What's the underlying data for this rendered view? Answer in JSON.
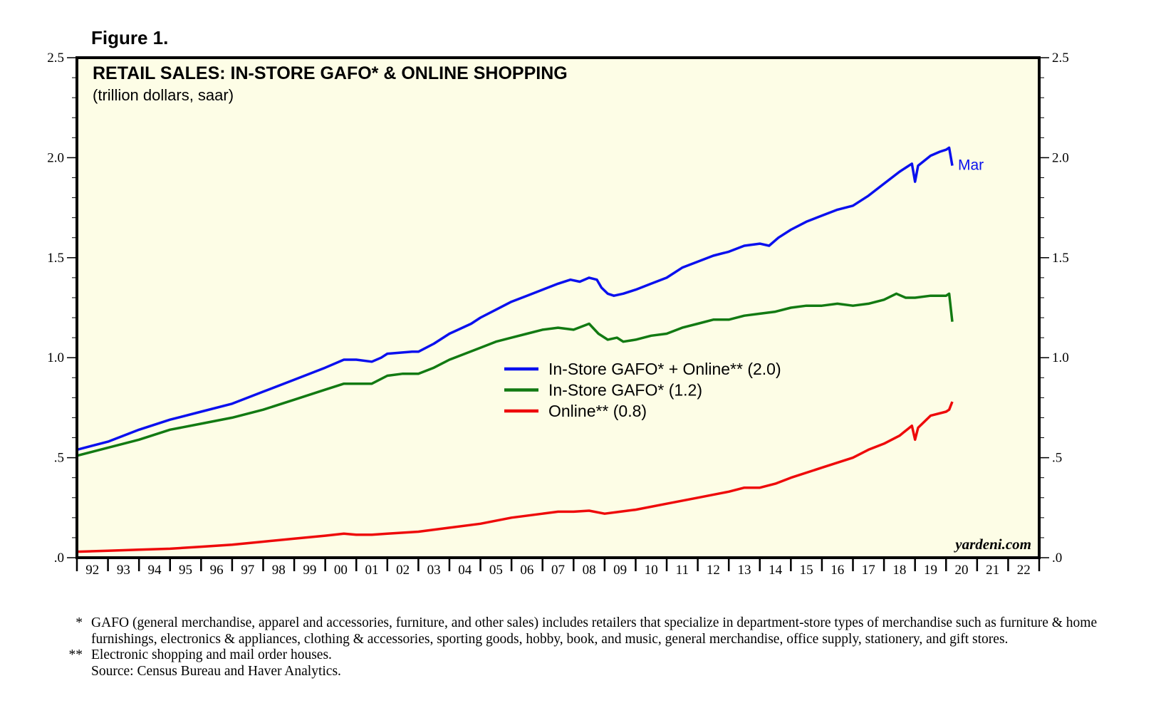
{
  "figure_label": "Figure 1.",
  "chart_data": {
    "type": "line",
    "title": "RETAIL SALES: IN-STORE GAFO* & ONLINE SHOPPING",
    "subtitle": "(trillion dollars, saar)",
    "ylim": [
      0,
      2.5
    ],
    "y_ticks": [
      ".0",
      ".5",
      "1.0",
      "1.5",
      "2.0",
      "2.5"
    ],
    "y_tick_values": [
      0,
      0.5,
      1.0,
      1.5,
      2.0,
      2.5
    ],
    "xlim": [
      1992,
      2023
    ],
    "x_tick_labels": [
      "92",
      "93",
      "94",
      "95",
      "96",
      "97",
      "98",
      "99",
      "00",
      "01",
      "02",
      "03",
      "04",
      "05",
      "06",
      "07",
      "08",
      "09",
      "10",
      "11",
      "12",
      "13",
      "14",
      "15",
      "16",
      "17",
      "18",
      "19",
      "20",
      "21",
      "22"
    ],
    "grid": false,
    "legend_position": "center",
    "background_color": "#fdfde6",
    "watermark": "yardeni.com",
    "end_label": "Mar",
    "series": [
      {
        "name": "In-Store GAFO* + Online** (2.0)",
        "color": "#0a10ee",
        "points": [
          [
            1992.0,
            0.54
          ],
          [
            1993.0,
            0.58
          ],
          [
            1994.0,
            0.64
          ],
          [
            1995.0,
            0.69
          ],
          [
            1996.0,
            0.73
          ],
          [
            1997.0,
            0.77
          ],
          [
            1998.0,
            0.83
          ],
          [
            1999.0,
            0.89
          ],
          [
            2000.0,
            0.95
          ],
          [
            2000.6,
            0.99
          ],
          [
            2001.0,
            0.99
          ],
          [
            2001.5,
            0.98
          ],
          [
            2001.8,
            1.0
          ],
          [
            2002.0,
            1.02
          ],
          [
            2002.8,
            1.03
          ],
          [
            2003.0,
            1.03
          ],
          [
            2003.5,
            1.07
          ],
          [
            2004.0,
            1.12
          ],
          [
            2004.7,
            1.17
          ],
          [
            2005.0,
            1.2
          ],
          [
            2005.5,
            1.24
          ],
          [
            2006.0,
            1.28
          ],
          [
            2006.5,
            1.31
          ],
          [
            2007.0,
            1.34
          ],
          [
            2007.5,
            1.37
          ],
          [
            2007.9,
            1.39
          ],
          [
            2008.2,
            1.38
          ],
          [
            2008.5,
            1.4
          ],
          [
            2008.75,
            1.39
          ],
          [
            2008.9,
            1.35
          ],
          [
            2009.1,
            1.32
          ],
          [
            2009.3,
            1.31
          ],
          [
            2009.6,
            1.32
          ],
          [
            2010.0,
            1.34
          ],
          [
            2010.5,
            1.37
          ],
          [
            2011.0,
            1.4
          ],
          [
            2011.5,
            1.45
          ],
          [
            2012.0,
            1.48
          ],
          [
            2012.5,
            1.51
          ],
          [
            2013.0,
            1.53
          ],
          [
            2013.5,
            1.56
          ],
          [
            2014.0,
            1.57
          ],
          [
            2014.3,
            1.56
          ],
          [
            2014.6,
            1.6
          ],
          [
            2015.0,
            1.64
          ],
          [
            2015.5,
            1.68
          ],
          [
            2016.0,
            1.71
          ],
          [
            2016.5,
            1.74
          ],
          [
            2017.0,
            1.76
          ],
          [
            2017.5,
            1.81
          ],
          [
            2018.0,
            1.87
          ],
          [
            2018.5,
            1.93
          ],
          [
            2018.9,
            1.97
          ],
          [
            2019.0,
            1.88
          ],
          [
            2019.1,
            1.96
          ],
          [
            2019.5,
            2.01
          ],
          [
            2019.8,
            2.03
          ],
          [
            2020.0,
            2.04
          ],
          [
            2020.1,
            2.05
          ],
          [
            2020.2,
            1.96
          ]
        ]
      },
      {
        "name": "In-Store GAFO* (1.2)",
        "color": "#127a12",
        "points": [
          [
            1992.0,
            0.51
          ],
          [
            1993.0,
            0.55
          ],
          [
            1994.0,
            0.59
          ],
          [
            1995.0,
            0.64
          ],
          [
            1996.0,
            0.67
          ],
          [
            1997.0,
            0.7
          ],
          [
            1998.0,
            0.74
          ],
          [
            1999.0,
            0.79
          ],
          [
            2000.0,
            0.84
          ],
          [
            2000.6,
            0.87
          ],
          [
            2001.0,
            0.87
          ],
          [
            2001.5,
            0.87
          ],
          [
            2002.0,
            0.91
          ],
          [
            2002.5,
            0.92
          ],
          [
            2003.0,
            0.92
          ],
          [
            2003.5,
            0.95
          ],
          [
            2004.0,
            0.99
          ],
          [
            2004.5,
            1.02
          ],
          [
            2005.0,
            1.05
          ],
          [
            2005.5,
            1.08
          ],
          [
            2006.0,
            1.1
          ],
          [
            2006.5,
            1.12
          ],
          [
            2007.0,
            1.14
          ],
          [
            2007.5,
            1.15
          ],
          [
            2008.0,
            1.14
          ],
          [
            2008.5,
            1.17
          ],
          [
            2008.8,
            1.12
          ],
          [
            2009.1,
            1.09
          ],
          [
            2009.4,
            1.1
          ],
          [
            2009.6,
            1.08
          ],
          [
            2010.0,
            1.09
          ],
          [
            2010.5,
            1.11
          ],
          [
            2011.0,
            1.12
          ],
          [
            2011.5,
            1.15
          ],
          [
            2012.0,
            1.17
          ],
          [
            2012.5,
            1.19
          ],
          [
            2013.0,
            1.19
          ],
          [
            2013.5,
            1.21
          ],
          [
            2014.0,
            1.22
          ],
          [
            2014.5,
            1.23
          ],
          [
            2015.0,
            1.25
          ],
          [
            2015.5,
            1.26
          ],
          [
            2016.0,
            1.26
          ],
          [
            2016.5,
            1.27
          ],
          [
            2017.0,
            1.26
          ],
          [
            2017.5,
            1.27
          ],
          [
            2018.0,
            1.29
          ],
          [
            2018.4,
            1.32
          ],
          [
            2018.7,
            1.3
          ],
          [
            2019.0,
            1.3
          ],
          [
            2019.5,
            1.31
          ],
          [
            2020.0,
            1.31
          ],
          [
            2020.1,
            1.32
          ],
          [
            2020.2,
            1.18
          ]
        ]
      },
      {
        "name": "Online** (0.8)",
        "color": "#ee0a0a",
        "points": [
          [
            1992.0,
            0.03
          ],
          [
            1993.0,
            0.035
          ],
          [
            1994.0,
            0.04
          ],
          [
            1995.0,
            0.045
          ],
          [
            1996.0,
            0.055
          ],
          [
            1997.0,
            0.065
          ],
          [
            1998.0,
            0.08
          ],
          [
            1999.0,
            0.095
          ],
          [
            2000.0,
            0.11
          ],
          [
            2000.6,
            0.12
          ],
          [
            2001.0,
            0.115
          ],
          [
            2001.5,
            0.115
          ],
          [
            2002.0,
            0.12
          ],
          [
            2003.0,
            0.13
          ],
          [
            2004.0,
            0.15
          ],
          [
            2005.0,
            0.17
          ],
          [
            2006.0,
            0.2
          ],
          [
            2007.0,
            0.22
          ],
          [
            2007.5,
            0.23
          ],
          [
            2008.0,
            0.23
          ],
          [
            2008.5,
            0.235
          ],
          [
            2009.0,
            0.22
          ],
          [
            2009.5,
            0.23
          ],
          [
            2010.0,
            0.24
          ],
          [
            2011.0,
            0.27
          ],
          [
            2012.0,
            0.3
          ],
          [
            2013.0,
            0.33
          ],
          [
            2013.5,
            0.35
          ],
          [
            2014.0,
            0.35
          ],
          [
            2014.5,
            0.37
          ],
          [
            2015.0,
            0.4
          ],
          [
            2016.0,
            0.45
          ],
          [
            2017.0,
            0.5
          ],
          [
            2017.5,
            0.54
          ],
          [
            2018.0,
            0.57
          ],
          [
            2018.5,
            0.61
          ],
          [
            2018.9,
            0.66
          ],
          [
            2019.0,
            0.59
          ],
          [
            2019.1,
            0.65
          ],
          [
            2019.5,
            0.71
          ],
          [
            2020.0,
            0.73
          ],
          [
            2020.1,
            0.74
          ],
          [
            2020.2,
            0.78
          ]
        ]
      }
    ]
  },
  "footnotes": [
    {
      "mark": "*",
      "text": "GAFO (general merchandise, apparel and accessories, furniture, and other sales) includes retailers that specialize in department-store types of merchandise such as furniture & home furnishings, electronics & appliances, clothing & accessories, sporting goods, hobby, book, and music, general merchandise, office supply, stationery, and gift stores."
    },
    {
      "mark": "**",
      "text": "Electronic shopping and mail order houses."
    },
    {
      "mark": "",
      "text": "Source: Census Bureau and Haver Analytics."
    }
  ]
}
